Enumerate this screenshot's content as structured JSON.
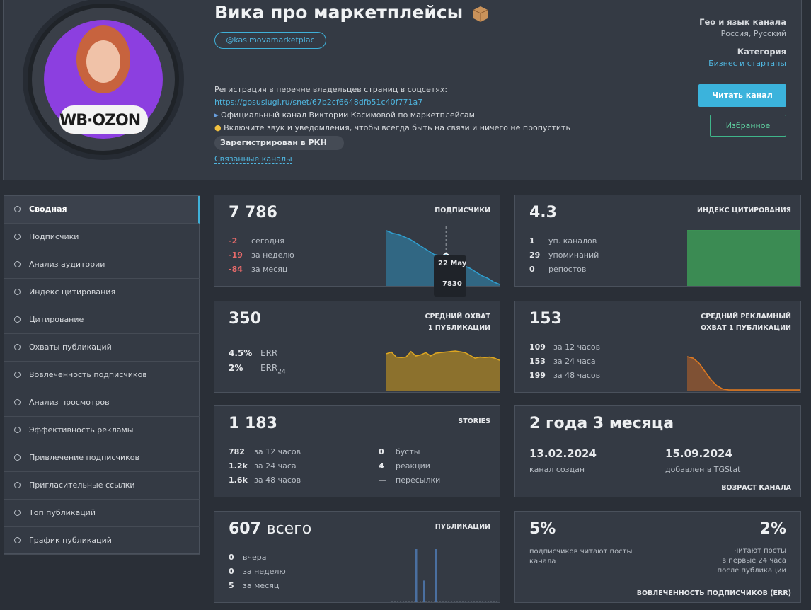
{
  "header": {
    "title": "Вика про маркетплейсы",
    "avatar_badge": "WB·OZON",
    "handle": "@kasimovamarketplac",
    "description": [
      "Регистрация в перечне владельцев страниц в соцсетях:",
      "https://gosuslugi.ru/snet/67b2cf6648dfb51c40f771a7",
      "Официальный канал Виктории Касимовой по маркетплейсам",
      "Включите звук и уведомления, чтобы всегда быть на связи и ничего не пропустить"
    ],
    "badge": "Зарегистрирован в РКН",
    "related": "Связанные каналы",
    "geo_label": "Гео и язык канала",
    "geo_value": "Россия, Русский",
    "category_label": "Категория",
    "category_value": "Бизнес и стартапы",
    "read_button": "Читать канал",
    "favorite_button": "Избранное"
  },
  "sidebar": [
    "Сводная",
    "Подписчики",
    "Анализ аудитории",
    "Индекс цитирования",
    "Цитирование",
    "Охваты публикаций",
    "Вовлеченность подписчиков",
    "Анализ просмотров",
    "Эффективность рекламы",
    "Привлечение подписчиков",
    "Пригласительные ссылки",
    "Топ публикаций",
    "График публикаций"
  ],
  "cards": {
    "subscribers": {
      "value": "7 786",
      "title": "ПОДПИСЧИКИ",
      "rows": [
        [
          "-2",
          "сегодня"
        ],
        [
          "-19",
          "за неделю"
        ],
        [
          "-84",
          "за месяц"
        ]
      ],
      "tooltip": {
        "date": "22 May",
        "value": "7830"
      },
      "spark": [
        7872,
        7868,
        7866,
        7862,
        7858,
        7852,
        7846,
        7840,
        7834,
        7832,
        7830,
        7826,
        7822,
        7816,
        7812,
        7806,
        7800,
        7796,
        7790,
        7786
      ]
    },
    "citation": {
      "value": "4.3",
      "title": "ИНДЕКС ЦИТИРОВАНИЯ",
      "rows": [
        [
          "1",
          "уп. каналов"
        ],
        [
          "29",
          "упоминаний"
        ],
        [
          "0",
          "репостов"
        ]
      ],
      "spark": [
        4.3,
        4.3,
        4.3,
        4.3,
        4.3,
        4.3
      ]
    },
    "reach": {
      "value": "350",
      "title": [
        "СРЕДНИЙ ОХВАТ",
        "1 ПУБЛИКАЦИИ"
      ],
      "rows": [
        {
          "value": "4.5%",
          "label": "ERR"
        },
        {
          "value": "2%",
          "label": "ERR",
          "sub": "24"
        }
      ],
      "spark": [
        330,
        345,
        300,
        295,
        300,
        350,
        310,
        320,
        340,
        310,
        335,
        340,
        345,
        350,
        355,
        348,
        340,
        315,
        290,
        300,
        295,
        300,
        290,
        270
      ]
    },
    "ad_reach": {
      "value": "153",
      "title": [
        "СРЕДНИЙ РЕКЛАМНЫЙ",
        "ОХВАТ 1 ПУБЛИКАЦИИ"
      ],
      "rows": [
        [
          "109",
          "за 12 часов"
        ],
        [
          "153",
          "за 24 часа"
        ],
        [
          "199",
          "за 48 часов"
        ]
      ],
      "spark": [
        199,
        190,
        160,
        110,
        60,
        25,
        5,
        0,
        0,
        0,
        0,
        0,
        0,
        0,
        0,
        0,
        0,
        0,
        0,
        0
      ]
    },
    "stories": {
      "value": "1 183",
      "title": "STORIES",
      "rows": [
        [
          "782",
          "за 12 часов"
        ],
        [
          "1.2k",
          "за 24 часа"
        ],
        [
          "1.6k",
          "за 48 часов"
        ]
      ],
      "rows_right": [
        [
          "0",
          "бусты"
        ],
        [
          "4",
          "реакции"
        ],
        [
          "—",
          "пересылки"
        ]
      ]
    },
    "age": {
      "value": "2 года 3 месяца",
      "created": {
        "date": "13.02.2024",
        "label": "канал создан"
      },
      "added": {
        "date": "15.09.2024",
        "label": "добавлен в TGStat"
      },
      "footer": "ВОЗРАСТ КАНАЛА"
    },
    "posts": {
      "value": "607",
      "unit": "всего",
      "title": "ПУБЛИКАЦИИ",
      "rows": [
        [
          "0",
          "вчера"
        ],
        [
          "0",
          "за неделю"
        ],
        [
          "5",
          "за месяц"
        ]
      ],
      "bars": [
        0,
        0,
        0,
        0,
        0,
        0,
        5,
        0,
        2,
        0,
        0,
        5,
        0,
        0,
        0,
        0,
        0,
        0,
        0,
        0,
        0,
        0,
        0,
        0
      ]
    },
    "engagement": {
      "left_value": "5%",
      "left_text": "подписчиков читают посты канала",
      "right_value": "2%",
      "right_text": [
        "читают посты",
        "в первые 24 часа",
        "после публикации"
      ],
      "footer": "ВОВЛЕЧЕННОСТЬ ПОДПИСЧИКОВ (ERR)"
    }
  }
}
